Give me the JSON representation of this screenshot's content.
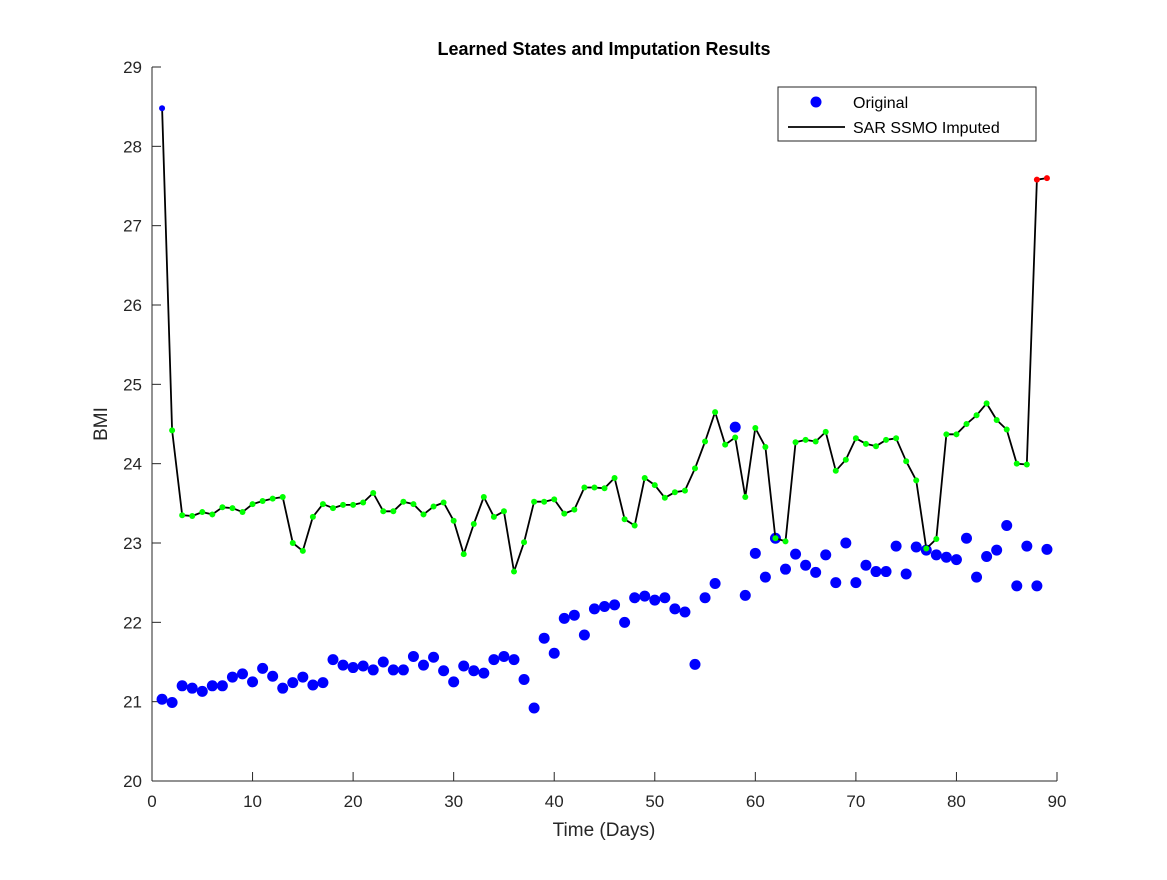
{
  "chart_data": {
    "type": "line",
    "title": "Learned States and Imputation Results",
    "xlabel": "Time (Days)",
    "ylabel": "BMI",
    "xlim": [
      0,
      90
    ],
    "ylim": [
      20,
      29
    ],
    "xticks": [
      0,
      10,
      20,
      30,
      40,
      50,
      60,
      70,
      80,
      90
    ],
    "yticks": [
      20,
      21,
      22,
      23,
      24,
      25,
      26,
      27,
      28,
      29
    ],
    "grid": false,
    "legend_position": "top-right",
    "legend": [
      "Original",
      "SAR SSMO Imputed"
    ],
    "colors": {
      "original": "#0000ff",
      "imputed_line": "#000000",
      "state_green": "#00ff00",
      "state_red": "#ff0000",
      "state_blue": "#0000ff"
    },
    "series": [
      {
        "name": "Original",
        "marker": "filled-circle",
        "points": [
          [
            1,
            21.03
          ],
          [
            2,
            20.99
          ],
          [
            3,
            21.2
          ],
          [
            4,
            21.17
          ],
          [
            5,
            21.13
          ],
          [
            6,
            21.2
          ],
          [
            7,
            21.2
          ],
          [
            8,
            21.31
          ],
          [
            9,
            21.35
          ],
          [
            10,
            21.25
          ],
          [
            11,
            21.42
          ],
          [
            12,
            21.32
          ],
          [
            13,
            21.17
          ],
          [
            14,
            21.24
          ],
          [
            15,
            21.31
          ],
          [
            16,
            21.21
          ],
          [
            17,
            21.24
          ],
          [
            18,
            21.53
          ],
          [
            19,
            21.46
          ],
          [
            20,
            21.43
          ],
          [
            21,
            21.45
          ],
          [
            22,
            21.4
          ],
          [
            23,
            21.5
          ],
          [
            24,
            21.4
          ],
          [
            25,
            21.4
          ],
          [
            26,
            21.57
          ],
          [
            27,
            21.46
          ],
          [
            28,
            21.56
          ],
          [
            29,
            21.39
          ],
          [
            30,
            21.25
          ],
          [
            31,
            21.45
          ],
          [
            32,
            21.39
          ],
          [
            33,
            21.36
          ],
          [
            34,
            21.53
          ],
          [
            35,
            21.57
          ],
          [
            36,
            21.53
          ],
          [
            37,
            21.28
          ],
          [
            38,
            20.92
          ],
          [
            39,
            21.8
          ],
          [
            40,
            21.61
          ],
          [
            41,
            22.05
          ],
          [
            42,
            22.09
          ],
          [
            43,
            21.84
          ],
          [
            44,
            22.17
          ],
          [
            45,
            22.2
          ],
          [
            46,
            22.22
          ],
          [
            47,
            22.0
          ],
          [
            48,
            22.31
          ],
          [
            49,
            22.33
          ],
          [
            50,
            22.28
          ],
          [
            51,
            22.31
          ],
          [
            52,
            22.17
          ],
          [
            53,
            22.13
          ],
          [
            54,
            21.47
          ],
          [
            55,
            22.31
          ],
          [
            56,
            22.49
          ],
          [
            58,
            24.46
          ],
          [
            59,
            22.34
          ],
          [
            60,
            22.87
          ],
          [
            61,
            22.57
          ],
          [
            62,
            23.06
          ],
          [
            63,
            22.67
          ],
          [
            64,
            22.86
          ],
          [
            65,
            22.72
          ],
          [
            66,
            22.63
          ],
          [
            67,
            22.85
          ],
          [
            68,
            22.5
          ],
          [
            69,
            23.0
          ],
          [
            70,
            22.5
          ],
          [
            71,
            22.72
          ],
          [
            72,
            22.64
          ],
          [
            73,
            22.64
          ],
          [
            74,
            22.96
          ],
          [
            75,
            22.61
          ],
          [
            76,
            22.95
          ],
          [
            77,
            22.91
          ],
          [
            78,
            22.85
          ],
          [
            79,
            22.82
          ],
          [
            80,
            22.79
          ],
          [
            81,
            23.06
          ],
          [
            82,
            22.57
          ],
          [
            83,
            22.83
          ],
          [
            84,
            22.91
          ],
          [
            85,
            23.22
          ],
          [
            86,
            22.46
          ],
          [
            87,
            22.96
          ],
          [
            88,
            22.46
          ],
          [
            89,
            22.92
          ]
        ]
      },
      {
        "name": "SAR SSMO Imputed",
        "marker": "line-with-state-dots",
        "points": [
          [
            1,
            28.48,
            "blue"
          ],
          [
            2,
            24.42,
            "green"
          ],
          [
            3,
            23.35,
            "green"
          ],
          [
            4,
            23.34,
            "green"
          ],
          [
            5,
            23.39,
            "green"
          ],
          [
            6,
            23.36,
            "green"
          ],
          [
            7,
            23.45,
            "green"
          ],
          [
            8,
            23.44,
            "green"
          ],
          [
            9,
            23.39,
            "green"
          ],
          [
            10,
            23.49,
            "green"
          ],
          [
            11,
            23.53,
            "green"
          ],
          [
            12,
            23.56,
            "green"
          ],
          [
            13,
            23.58,
            "green"
          ],
          [
            14,
            23.0,
            "green"
          ],
          [
            15,
            22.9,
            "green"
          ],
          [
            16,
            23.33,
            "green"
          ],
          [
            17,
            23.49,
            "green"
          ],
          [
            18,
            23.44,
            "green"
          ],
          [
            19,
            23.48,
            "green"
          ],
          [
            20,
            23.48,
            "green"
          ],
          [
            21,
            23.51,
            "green"
          ],
          [
            22,
            23.63,
            "green"
          ],
          [
            23,
            23.4,
            "green"
          ],
          [
            24,
            23.4,
            "green"
          ],
          [
            25,
            23.52,
            "green"
          ],
          [
            26,
            23.49,
            "green"
          ],
          [
            27,
            23.36,
            "green"
          ],
          [
            28,
            23.46,
            "green"
          ],
          [
            29,
            23.51,
            "green"
          ],
          [
            30,
            23.28,
            "green"
          ],
          [
            31,
            22.86,
            "green"
          ],
          [
            32,
            23.24,
            "green"
          ],
          [
            33,
            23.58,
            "green"
          ],
          [
            34,
            23.33,
            "green"
          ],
          [
            35,
            23.4,
            "green"
          ],
          [
            36,
            22.64,
            "green"
          ],
          [
            37,
            23.01,
            "green"
          ],
          [
            38,
            23.52,
            "green"
          ],
          [
            39,
            23.52,
            "green"
          ],
          [
            40,
            23.55,
            "green"
          ],
          [
            41,
            23.37,
            "green"
          ],
          [
            42,
            23.42,
            "green"
          ],
          [
            43,
            23.7,
            "green"
          ],
          [
            44,
            23.7,
            "green"
          ],
          [
            45,
            23.69,
            "green"
          ],
          [
            46,
            23.82,
            "green"
          ],
          [
            47,
            23.3,
            "green"
          ],
          [
            48,
            23.22,
            "green"
          ],
          [
            49,
            23.82,
            "green"
          ],
          [
            50,
            23.73,
            "green"
          ],
          [
            51,
            23.57,
            "green"
          ],
          [
            52,
            23.64,
            "green"
          ],
          [
            53,
            23.66,
            "green"
          ],
          [
            54,
            23.94,
            "green"
          ],
          [
            55,
            24.28,
            "green"
          ],
          [
            56,
            24.65,
            "green"
          ],
          [
            57,
            24.24,
            "green"
          ],
          [
            58,
            24.33,
            "green"
          ],
          [
            59,
            23.58,
            "green"
          ],
          [
            60,
            24.45,
            "green"
          ],
          [
            61,
            24.21,
            "green"
          ],
          [
            62,
            23.06,
            "green"
          ],
          [
            63,
            23.02,
            "green"
          ],
          [
            64,
            24.27,
            "green"
          ],
          [
            65,
            24.3,
            "green"
          ],
          [
            66,
            24.28,
            "green"
          ],
          [
            67,
            24.4,
            "green"
          ],
          [
            68,
            23.91,
            "green"
          ],
          [
            69,
            24.05,
            "green"
          ],
          [
            70,
            24.32,
            "green"
          ],
          [
            71,
            24.25,
            "green"
          ],
          [
            72,
            24.22,
            "green"
          ],
          [
            73,
            24.3,
            "green"
          ],
          [
            74,
            24.32,
            "green"
          ],
          [
            75,
            24.03,
            "green"
          ],
          [
            76,
            23.79,
            "green"
          ],
          [
            77,
            22.93,
            "green"
          ],
          [
            78,
            23.05,
            "green"
          ],
          [
            79,
            24.37,
            "green"
          ],
          [
            80,
            24.37,
            "green"
          ],
          [
            81,
            24.5,
            "green"
          ],
          [
            82,
            24.61,
            "green"
          ],
          [
            83,
            24.76,
            "green"
          ],
          [
            84,
            24.55,
            "green"
          ],
          [
            85,
            24.43,
            "green"
          ],
          [
            86,
            24.0,
            "green"
          ],
          [
            87,
            23.99,
            "green"
          ],
          [
            88,
            27.58,
            "red"
          ],
          [
            89,
            27.6,
            "red"
          ]
        ]
      }
    ]
  }
}
